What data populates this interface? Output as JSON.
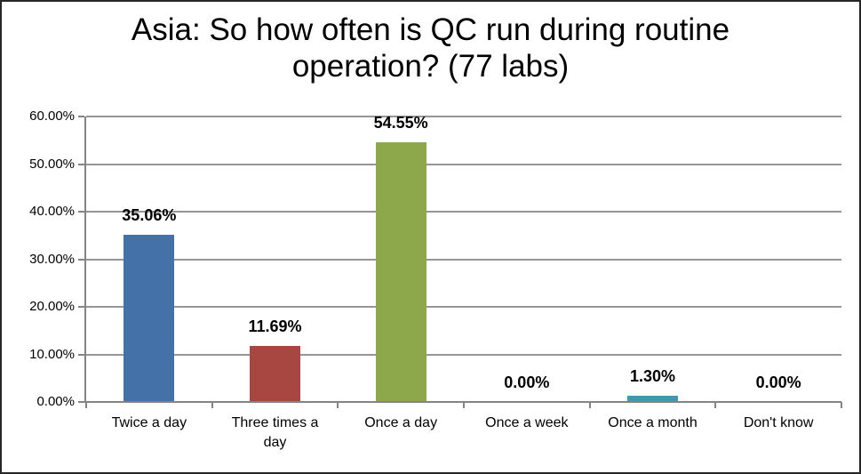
{
  "window": {
    "background": "#FFFFFF",
    "border_color": "#262626"
  },
  "chart_data": {
    "type": "bar",
    "title": "Asia: So how often is QC run during routine operation? (77 labs)",
    "categories": [
      "Twice a day",
      "Three times a day",
      "Once a day",
      "Once a week",
      "Once a month",
      "Don't know"
    ],
    "values": [
      35.06,
      11.69,
      54.55,
      0,
      1.3,
      0
    ],
    "data_labels": [
      "35.06%",
      "11.69%",
      "54.55%",
      "0.00%",
      "1.30%",
      "0.00%"
    ],
    "bar_colors": [
      "#4472A8",
      "#A84642",
      "#8DA84B",
      null,
      "#4597AF",
      null
    ],
    "xlabel": "",
    "ylabel": "",
    "ylim": [
      0,
      60
    ],
    "y_ticks": [
      0,
      10,
      20,
      30,
      40,
      50,
      60
    ],
    "y_tick_labels": [
      "0.00%",
      "10.00%",
      "20.00%",
      "30.00%",
      "40.00%",
      "50.00%",
      "60.00%"
    ],
    "grid": "horizontal",
    "legend": "none",
    "colors": {
      "gridline": "#969696",
      "axis": "#848484",
      "text": "#000000"
    }
  }
}
